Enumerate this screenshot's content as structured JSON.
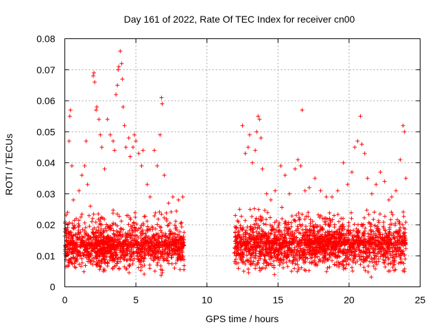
{
  "chart_data": {
    "type": "scatter",
    "title": "Day 161 of 2022, Rate Of TEC Index for receiver cn00",
    "xlabel": "GPS time / hours",
    "ylabel": "ROTI / TECUs",
    "xlim": [
      0,
      25
    ],
    "ylim": [
      0,
      0.08
    ],
    "xticks": [
      0,
      5,
      10,
      15,
      20,
      25
    ],
    "yticks": [
      0,
      0.01,
      0.02,
      0.03,
      0.04,
      0.05,
      0.06,
      0.07,
      0.08
    ],
    "xtick_labels": [
      "0",
      "5",
      "10",
      "15",
      "20",
      "25"
    ],
    "ytick_labels": [
      "0",
      "0.01",
      "0.02",
      "0.03",
      "0.04",
      "0.05",
      "0.06",
      "0.07",
      "0.08"
    ],
    "grid": true,
    "marker": "plus",
    "marker_color": "#ff0000",
    "series": [
      {
        "name": "cn00",
        "points": [
          [
            0.1,
            0.015
          ],
          [
            0.2,
            0.024
          ],
          [
            0.3,
            0.047
          ],
          [
            0.35,
            0.055
          ],
          [
            0.4,
            0.057
          ],
          [
            0.5,
            0.039
          ],
          [
            0.6,
            0.028
          ],
          [
            0.8,
            0.022
          ],
          [
            1.0,
            0.031
          ],
          [
            1.2,
            0.036
          ],
          [
            1.4,
            0.039
          ],
          [
            1.5,
            0.047
          ],
          [
            1.6,
            0.033
          ],
          [
            1.8,
            0.026
          ],
          [
            2.0,
            0.068
          ],
          [
            2.05,
            0.069
          ],
          [
            2.1,
            0.066
          ],
          [
            2.2,
            0.057
          ],
          [
            2.25,
            0.058
          ],
          [
            2.4,
            0.054
          ],
          [
            2.5,
            0.049
          ],
          [
            2.6,
            0.045
          ],
          [
            2.8,
            0.038
          ],
          [
            3.0,
            0.054
          ],
          [
            3.2,
            0.049
          ],
          [
            3.4,
            0.047
          ],
          [
            3.5,
            0.044
          ],
          [
            3.6,
            0.062
          ],
          [
            3.7,
            0.065
          ],
          [
            3.75,
            0.07
          ],
          [
            3.8,
            0.071
          ],
          [
            3.9,
            0.076
          ],
          [
            4.0,
            0.072
          ],
          [
            4.05,
            0.067
          ],
          [
            4.1,
            0.058
          ],
          [
            4.2,
            0.052
          ],
          [
            4.3,
            0.045
          ],
          [
            4.5,
            0.048
          ],
          [
            4.6,
            0.042
          ],
          [
            4.8,
            0.045
          ],
          [
            4.9,
            0.049
          ],
          [
            5.0,
            0.047
          ],
          [
            5.2,
            0.043
          ],
          [
            5.4,
            0.039
          ],
          [
            5.5,
            0.044
          ],
          [
            5.8,
            0.033
          ],
          [
            6.0,
            0.029
          ],
          [
            6.3,
            0.044
          ],
          [
            6.5,
            0.039
          ],
          [
            6.7,
            0.049
          ],
          [
            6.8,
            0.061
          ],
          [
            6.85,
            0.059
          ],
          [
            7.0,
            0.036
          ],
          [
            7.3,
            0.027
          ],
          [
            7.6,
            0.029
          ],
          [
            8.0,
            0.028
          ],
          [
            8.3,
            0.029
          ],
          [
            12.0,
            0.023
          ],
          [
            12.3,
            0.025
          ],
          [
            12.5,
            0.052
          ],
          [
            12.7,
            0.043
          ],
          [
            12.9,
            0.045
          ],
          [
            13.0,
            0.049
          ],
          [
            13.2,
            0.04
          ],
          [
            13.4,
            0.044
          ],
          [
            13.5,
            0.05
          ],
          [
            13.6,
            0.055
          ],
          [
            13.7,
            0.054
          ],
          [
            13.8,
            0.048
          ],
          [
            13.9,
            0.038
          ],
          [
            14.2,
            0.03
          ],
          [
            14.5,
            0.028
          ],
          [
            14.8,
            0.031
          ],
          [
            15.2,
            0.039
          ],
          [
            15.5,
            0.036
          ],
          [
            15.8,
            0.03
          ],
          [
            16.2,
            0.038
          ],
          [
            16.4,
            0.041
          ],
          [
            16.6,
            0.039
          ],
          [
            16.7,
            0.057
          ],
          [
            16.9,
            0.031
          ],
          [
            17.2,
            0.032
          ],
          [
            17.6,
            0.035
          ],
          [
            18.0,
            0.031
          ],
          [
            18.4,
            0.029
          ],
          [
            18.8,
            0.029
          ],
          [
            19.2,
            0.031
          ],
          [
            19.6,
            0.04
          ],
          [
            19.9,
            0.033
          ],
          [
            20.2,
            0.037
          ],
          [
            20.4,
            0.045
          ],
          [
            20.6,
            0.047
          ],
          [
            20.8,
            0.055
          ],
          [
            20.9,
            0.046
          ],
          [
            21.1,
            0.043
          ],
          [
            21.3,
            0.035
          ],
          [
            21.6,
            0.03
          ],
          [
            21.9,
            0.033
          ],
          [
            22.2,
            0.037
          ],
          [
            22.5,
            0.034
          ],
          [
            22.8,
            0.028
          ],
          [
            23.0,
            0.029
          ],
          [
            23.3,
            0.031
          ],
          [
            23.6,
            0.041
          ],
          [
            23.8,
            0.052
          ],
          [
            23.9,
            0.05
          ],
          [
            24.0,
            0.035
          ]
        ],
        "dense_segments": [
          {
            "x_start": 0.0,
            "x_end": 8.4,
            "y_low": 0.003,
            "y_high": 0.028,
            "y_center": 0.0135
          },
          {
            "x_start": 11.9,
            "x_end": 24.0,
            "y_low": 0.003,
            "y_high": 0.028,
            "y_center": 0.014
          }
        ]
      }
    ]
  }
}
